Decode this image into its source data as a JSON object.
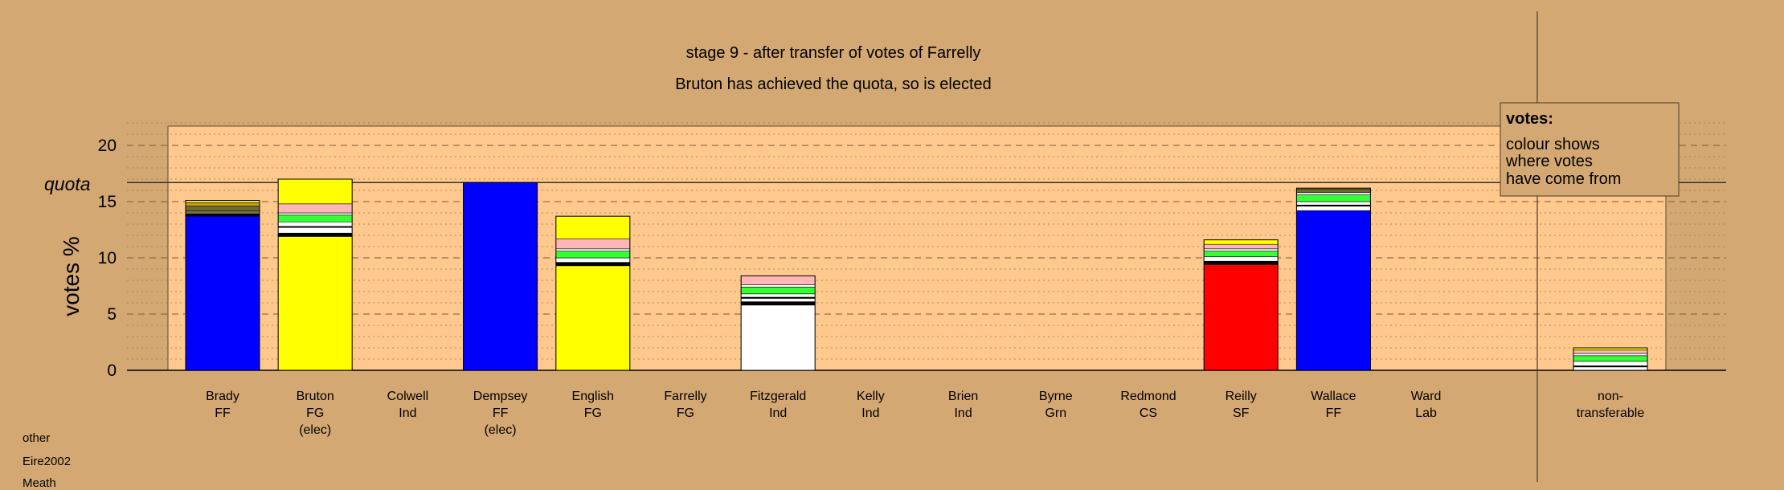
{
  "chart_data": {
    "type": "bar",
    "stacked": true,
    "title": "stage 9 - after transfer of votes of Farrelly",
    "subtitle": "Bruton has achieved the quota, so is elected",
    "ylabel": "votes %",
    "ylim": [
      0,
      22
    ],
    "yticks": [
      0,
      5,
      10,
      15,
      20
    ],
    "quota": 16.7,
    "quota_label": "quota",
    "grid": "dashed at major ticks, dotted at minor ticks",
    "legend": {
      "title": "votes:",
      "lines": [
        "colour shows",
        "where votes",
        "have come from"
      ],
      "placement": "top-right"
    },
    "segment_colors": {
      "FF": "#0000ff",
      "FG": "#ffff00",
      "Ind": "#ffffff",
      "SF": "#ff0000",
      "black": "#000000",
      "white": "#ffffff",
      "green": "#33ff33",
      "pink": "#ffb6b6",
      "olive": "#6b6b2a",
      "gold": "#c8a028",
      "grey": "#7a6a4a"
    },
    "candidates": [
      {
        "name": "Brady",
        "party": "FF",
        "note": "",
        "segments": [
          {
            "color": "FF",
            "value": 13.7
          },
          {
            "color": "black",
            "value": 0.2
          },
          {
            "color": "grey",
            "value": 0.3
          },
          {
            "color": "olive",
            "value": 0.4
          },
          {
            "color": "gold",
            "value": 0.3
          },
          {
            "color": "FG",
            "value": 0.2
          }
        ]
      },
      {
        "name": "Bruton",
        "party": "FG",
        "note": "(elec)",
        "segments": [
          {
            "color": "FG",
            "value": 11.9
          },
          {
            "color": "black",
            "value": 0.3
          },
          {
            "color": "white",
            "value": 0.5
          },
          {
            "color": "black",
            "value": 0.1
          },
          {
            "color": "white",
            "value": 0.4
          },
          {
            "color": "green",
            "value": 0.6
          },
          {
            "color": "white",
            "value": 0.2
          },
          {
            "color": "pink",
            "value": 0.8
          },
          {
            "color": "FG",
            "value": 2.2
          }
        ]
      },
      {
        "name": "Colwell",
        "party": "Ind",
        "note": "",
        "segments": []
      },
      {
        "name": "Dempsey",
        "party": "FF",
        "note": "(elec)",
        "segments": [
          {
            "color": "FF",
            "value": 16.7
          }
        ]
      },
      {
        "name": "English",
        "party": "FG",
        "note": "",
        "segments": [
          {
            "color": "FG",
            "value": 9.3
          },
          {
            "color": "black",
            "value": 0.3
          },
          {
            "color": "white",
            "value": 0.4
          },
          {
            "color": "green",
            "value": 0.6
          },
          {
            "color": "white",
            "value": 0.2
          },
          {
            "color": "pink",
            "value": 0.9
          },
          {
            "color": "FG",
            "value": 2.0
          }
        ]
      },
      {
        "name": "Farrelly",
        "party": "FG",
        "note": "",
        "segments": []
      },
      {
        "name": "Fitzgerald",
        "party": "Ind",
        "note": "",
        "segments": [
          {
            "color": "Ind",
            "value": 5.8
          },
          {
            "color": "black",
            "value": 0.3
          },
          {
            "color": "white",
            "value": 0.3
          },
          {
            "color": "black",
            "value": 0.1
          },
          {
            "color": "white",
            "value": 0.3
          },
          {
            "color": "green",
            "value": 0.6
          },
          {
            "color": "white",
            "value": 0.2
          },
          {
            "color": "pink",
            "value": 0.8
          }
        ]
      },
      {
        "name": "Kelly",
        "party": "Ind",
        "note": "",
        "segments": []
      },
      {
        "name": "Brien",
        "party": "Ind",
        "note": "",
        "segments": []
      },
      {
        "name": "Byrne",
        "party": "Grn",
        "note": "",
        "segments": []
      },
      {
        "name": "Redmond",
        "party": "CS",
        "note": "",
        "segments": []
      },
      {
        "name": "Reilly",
        "party": "SF",
        "note": "",
        "segments": [
          {
            "color": "SF",
            "value": 9.4
          },
          {
            "color": "black",
            "value": 0.3
          },
          {
            "color": "white",
            "value": 0.4
          },
          {
            "color": "green",
            "value": 0.5
          },
          {
            "color": "white",
            "value": 0.2
          },
          {
            "color": "pink",
            "value": 0.4
          },
          {
            "color": "FG",
            "value": 0.4
          }
        ]
      },
      {
        "name": "Wallace",
        "party": "FF",
        "note": "",
        "segments": [
          {
            "color": "FF",
            "value": 14.2
          },
          {
            "color": "white",
            "value": 0.4
          },
          {
            "color": "black",
            "value": 0.1
          },
          {
            "color": "white",
            "value": 0.3
          },
          {
            "color": "green",
            "value": 0.6
          },
          {
            "color": "white",
            "value": 0.2
          },
          {
            "color": "olive",
            "value": 0.3
          },
          {
            "color": "gold",
            "value": 0.1
          }
        ]
      },
      {
        "name": "Ward",
        "party": "Lab",
        "note": "",
        "segments": []
      }
    ],
    "nontransferable": {
      "label_line1": "non-",
      "label_line2": "transferable",
      "segments": [
        {
          "color": "white",
          "value": 0.3
        },
        {
          "color": "black",
          "value": 0.1
        },
        {
          "color": "white",
          "value": 0.4
        },
        {
          "color": "green",
          "value": 0.5
        },
        {
          "color": "white",
          "value": 0.2
        },
        {
          "color": "pink",
          "value": 0.3
        },
        {
          "color": "FG",
          "value": 0.2
        }
      ]
    }
  },
  "footer": {
    "line1": "other",
    "line2": "Eire2002",
    "line3": "Meath"
  }
}
